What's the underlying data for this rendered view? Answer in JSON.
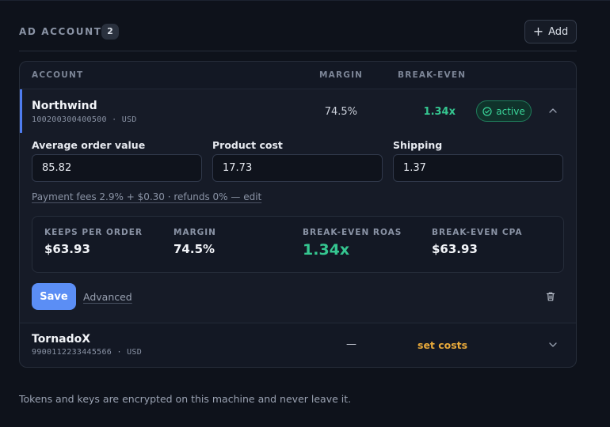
{
  "header": {
    "title": "AD ACCOUNTS",
    "count": "2",
    "add_label": "Add"
  },
  "table": {
    "columns": {
      "account": "ACCOUNT",
      "margin": "MARGIN",
      "break_even": "BREAK-EVEN"
    },
    "rows": [
      {
        "name": "Northwind",
        "meta": "100200300400500 · USD",
        "margin": "74.5%",
        "break_even": "1.34x",
        "status": "active",
        "expanded": true
      },
      {
        "name": "TornadoX",
        "meta": "9900112233445566 · USD",
        "margin": "—",
        "break_even": "set costs",
        "expanded": false
      }
    ]
  },
  "editor": {
    "fields": [
      {
        "label": "Average order value",
        "value": "85.82"
      },
      {
        "label": "Product cost",
        "value": "17.73"
      },
      {
        "label": "Shipping",
        "value": "1.37"
      }
    ],
    "fees_line": "Payment fees 2.9% + $0.30 · refunds 0% — edit",
    "stats": [
      {
        "label": "KEEPS PER ORDER",
        "value": "$63.93"
      },
      {
        "label": "MARGIN",
        "value": "74.5%"
      },
      {
        "label": "BREAK-EVEN ROAS",
        "value": "1.34x"
      },
      {
        "label": "BREAK-EVEN CPA",
        "value": "$63.93"
      }
    ],
    "save_label": "Save",
    "advanced_label": "Advanced"
  },
  "footer": {
    "note": "Tokens and keys are encrypted on this machine and never leave it."
  },
  "colors": {
    "accent": "#5b8ef5",
    "positive": "#35c690",
    "warning": "#e8a93a"
  },
  "icons": {
    "add": "plus-icon",
    "status": "check-circle-icon",
    "collapse": "chevron-up-icon",
    "expand": "chevron-down-icon",
    "delete": "trash-icon"
  }
}
